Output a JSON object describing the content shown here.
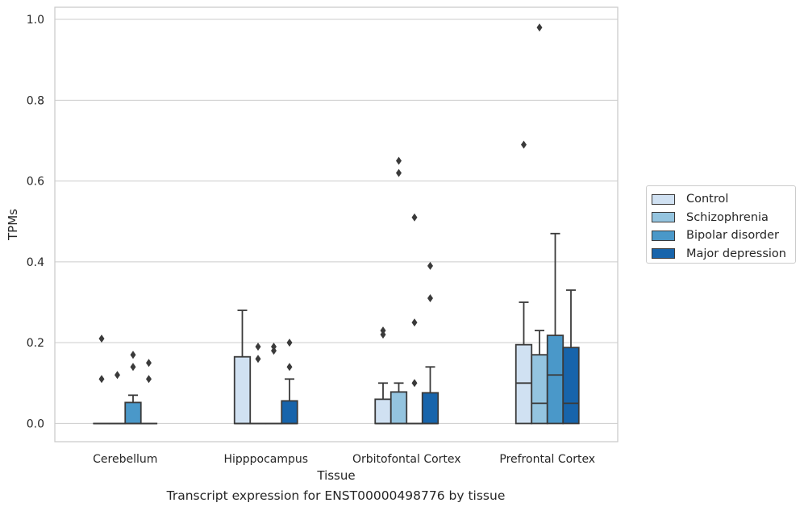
{
  "caption": "Transcript expression for ENST00000498776 by tissue",
  "legend": {
    "items": [
      {
        "label": "Control",
        "color": "#d0e1f2"
      },
      {
        "label": "Schizophrenia",
        "color": "#94c4df"
      },
      {
        "label": "Bipolar disorder",
        "color": "#4a98c9"
      },
      {
        "label": "Major depression",
        "color": "#1764ab"
      }
    ]
  },
  "chart_data": {
    "type": "box",
    "xlabel": "Tissue",
    "ylabel": "TPMs",
    "ylim": [
      -0.045,
      1.03
    ],
    "yticks": [
      "0.0",
      "0.2",
      "0.4",
      "0.6",
      "0.8",
      "1.0"
    ],
    "grid": true,
    "legend_position": "right",
    "categories": [
      "Cerebellum",
      "Hipppocampus",
      "Orbitofontal Cortex",
      "Prefrontal Cortex"
    ],
    "series": [
      {
        "name": "Control",
        "color": "#d0e1f2",
        "boxes": [
          {
            "q1": 0,
            "median": 0,
            "q3": 0,
            "whislo": 0,
            "whishi": 0,
            "fliers": [
              0.21,
              0.11
            ]
          },
          {
            "q1": 0,
            "median": 0,
            "q3": 0.165,
            "whislo": 0,
            "whishi": 0.28,
            "fliers": []
          },
          {
            "q1": 0,
            "median": 0,
            "q3": 0.06,
            "whislo": 0,
            "whishi": 0.1,
            "fliers": [
              0.23,
              0.22
            ]
          },
          {
            "q1": 0,
            "median": 0.1,
            "q3": 0.195,
            "whislo": 0,
            "whishi": 0.3,
            "fliers": [
              0.69
            ]
          }
        ]
      },
      {
        "name": "Schizophrenia",
        "color": "#94c4df",
        "boxes": [
          {
            "q1": 0,
            "median": 0,
            "q3": 0,
            "whislo": 0,
            "whishi": 0,
            "fliers": [
              0.12
            ]
          },
          {
            "q1": 0,
            "median": 0,
            "q3": 0,
            "whislo": 0,
            "whishi": 0,
            "fliers": [
              0.19,
              0.16
            ]
          },
          {
            "q1": 0,
            "median": 0,
            "q3": 0.078,
            "whislo": 0,
            "whishi": 0.1,
            "fliers": [
              0.65,
              0.62
            ]
          },
          {
            "q1": 0,
            "median": 0.05,
            "q3": 0.17,
            "whislo": 0,
            "whishi": 0.23,
            "fliers": [
              0.98
            ]
          }
        ]
      },
      {
        "name": "Bipolar disorder",
        "color": "#4a98c9",
        "boxes": [
          {
            "q1": 0,
            "median": 0,
            "q3": 0.052,
            "whislo": 0,
            "whishi": 0.07,
            "fliers": [
              0.17,
              0.14
            ]
          },
          {
            "q1": 0,
            "median": 0,
            "q3": 0,
            "whislo": 0,
            "whishi": 0,
            "fliers": [
              0.19,
              0.18
            ]
          },
          {
            "q1": 0,
            "median": 0,
            "q3": 0,
            "whislo": 0,
            "whishi": 0,
            "fliers": [
              0.51,
              0.25,
              0.1
            ]
          },
          {
            "q1": 0,
            "median": 0.12,
            "q3": 0.218,
            "whislo": 0,
            "whishi": 0.47,
            "fliers": []
          }
        ]
      },
      {
        "name": "Major depression",
        "color": "#1764ab",
        "boxes": [
          {
            "q1": 0,
            "median": 0,
            "q3": 0,
            "whislo": 0,
            "whishi": 0,
            "fliers": [
              0.15,
              0.11
            ]
          },
          {
            "q1": 0,
            "median": 0,
            "q3": 0.056,
            "whislo": 0,
            "whishi": 0.11,
            "fliers": [
              0.2,
              0.14
            ]
          },
          {
            "q1": 0,
            "median": 0,
            "q3": 0.076,
            "whislo": 0,
            "whishi": 0.14,
            "fliers": [
              0.39,
              0.31
            ]
          },
          {
            "q1": 0,
            "median": 0.05,
            "q3": 0.188,
            "whislo": 0,
            "whishi": 0.33,
            "fliers": []
          }
        ]
      }
    ]
  }
}
